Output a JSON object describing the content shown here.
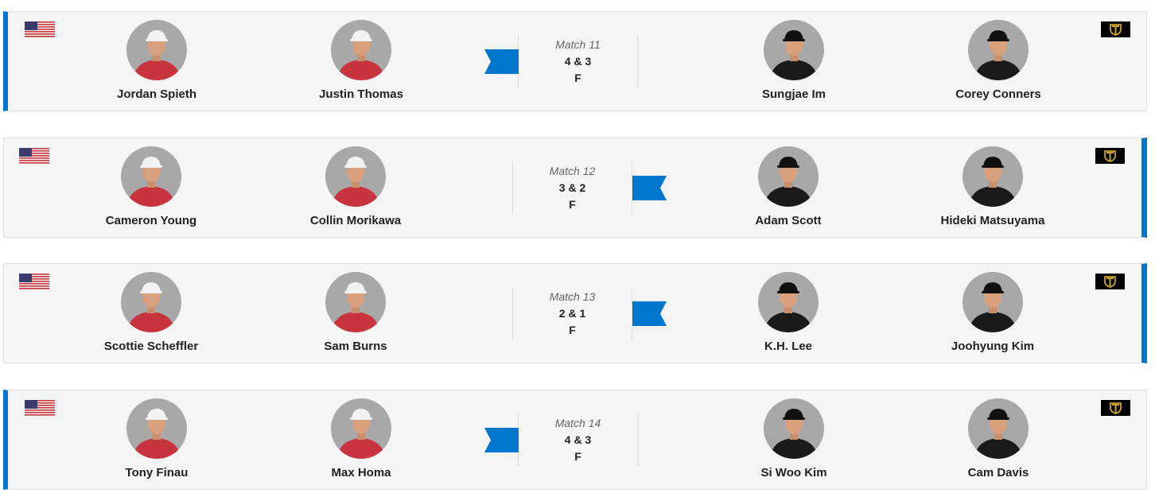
{
  "colors": {
    "accent": "#0077cc",
    "card_bg": "#f5f5f5",
    "usa_shirt": "#c8343d",
    "intl_shirt": "#1a1a1a",
    "logo_gold": "#c9a227"
  },
  "matches": [
    {
      "label": "Match 11",
      "result": "4 & 3",
      "status": "F",
      "winner": "usa",
      "usa": [
        "Jordan Spieth",
        "Justin Thomas"
      ],
      "intl": [
        "Sungjae Im",
        "Corey Conners"
      ]
    },
    {
      "label": "Match 12",
      "result": "3 & 2",
      "status": "F",
      "winner": "intl",
      "usa": [
        "Cameron Young",
        "Collin Morikawa"
      ],
      "intl": [
        "Adam Scott",
        "Hideki Matsuyama"
      ]
    },
    {
      "label": "Match 13",
      "result": "2 & 1",
      "status": "F",
      "winner": "intl",
      "usa": [
        "Scottie Scheffler",
        "Sam Burns"
      ],
      "intl": [
        "K.H. Lee",
        "Joohyung Kim"
      ]
    },
    {
      "label": "Match 14",
      "result": "4 & 3",
      "status": "F",
      "winner": "usa",
      "usa": [
        "Tony Finau",
        "Max Homa"
      ],
      "intl": [
        "Si Woo Kim",
        "Cam Davis"
      ]
    }
  ],
  "icons": {
    "usa": "usa-flag-icon",
    "intl": "international-team-logo-icon",
    "winner": "winner-ribbon-icon"
  }
}
